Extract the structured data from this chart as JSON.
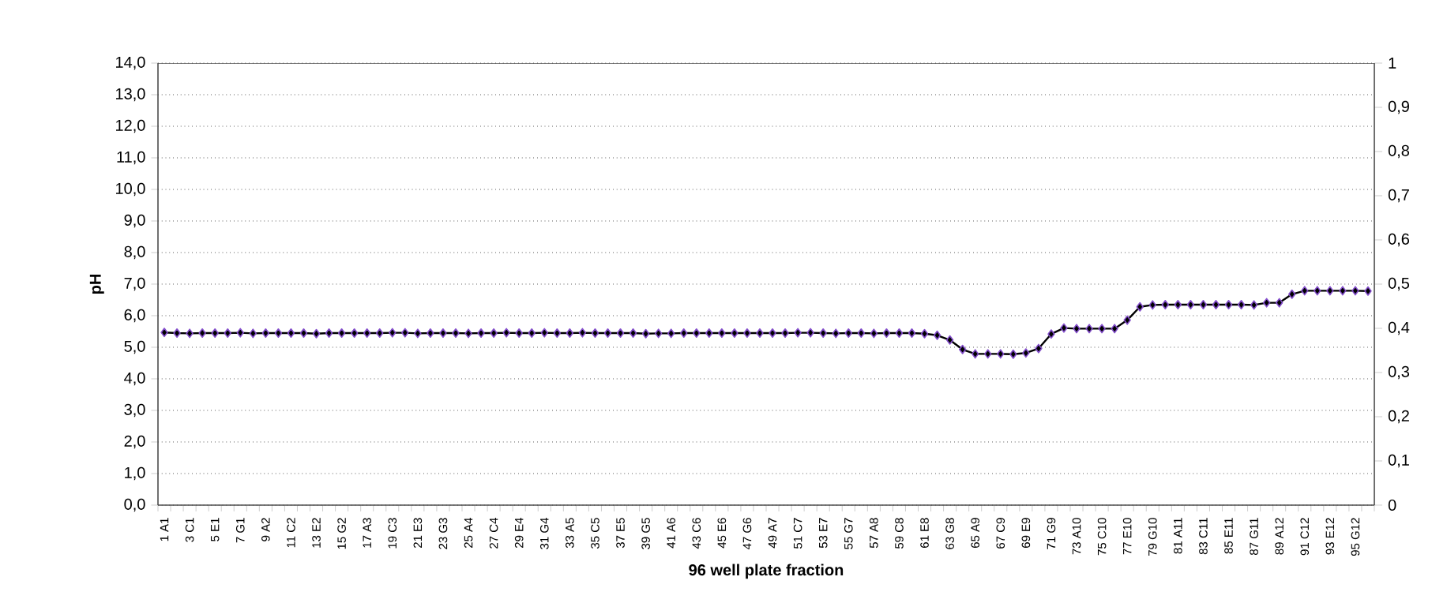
{
  "chart_data": {
    "type": "line",
    "xlabel": "96 well plate fraction",
    "ylabel": "pH",
    "categories": [
      "1 A1",
      null,
      "3 C1",
      null,
      "5 E1",
      null,
      "7 G1",
      null,
      "9 A2",
      null,
      "11 C2",
      null,
      "13 E2",
      null,
      "15 G2",
      null,
      "17 A3",
      null,
      "19 C3",
      null,
      "21 E3",
      null,
      "23 G3",
      null,
      "25 A4",
      null,
      "27 C4",
      null,
      "29 E4",
      null,
      "31 G4",
      null,
      "33 A5",
      null,
      "35 C5",
      null,
      "37 E5",
      null,
      "39 G5",
      null,
      "41 A6",
      null,
      "43 C6",
      null,
      "45 E6",
      null,
      "47 G6",
      null,
      "49 A7",
      null,
      "51 C7",
      null,
      "53 E7",
      null,
      "55 G7",
      null,
      "57 A8",
      null,
      "59 C8",
      null,
      "61 E8",
      null,
      "63 G8",
      null,
      "65 A9",
      null,
      "67 C9",
      null,
      "69 E9",
      null,
      "71 G9",
      null,
      "73 A10",
      null,
      "75 C10",
      null,
      "77 E10",
      null,
      "79 G10",
      null,
      "81 A11",
      null,
      "83 C11",
      null,
      "85 E11",
      null,
      "87 G11",
      null,
      "89 A12",
      null,
      "91 C12",
      null,
      "93 E12",
      null,
      "95 G12",
      null
    ],
    "series": [
      {
        "color": "#000000",
        "values": [
          5.47,
          5.45,
          5.44,
          5.45,
          5.45,
          5.45,
          5.46,
          5.44,
          5.45,
          5.45,
          5.45,
          5.45,
          5.43,
          5.45,
          5.45,
          5.45,
          5.45,
          5.45,
          5.46,
          5.46,
          5.44,
          5.45,
          5.45,
          5.45,
          5.44,
          5.45,
          5.45,
          5.46,
          5.45,
          5.45,
          5.46,
          5.45,
          5.45,
          5.46,
          5.45,
          5.45,
          5.45,
          5.45,
          5.43,
          5.44,
          5.44,
          5.45,
          5.45,
          5.45,
          5.45,
          5.45,
          5.45,
          5.45,
          5.45,
          5.45,
          5.46,
          5.46,
          5.45,
          5.44,
          5.45,
          5.45,
          5.44,
          5.45,
          5.45,
          5.45,
          5.43,
          5.38,
          5.23,
          4.93,
          4.79,
          4.79,
          4.79,
          4.78,
          4.82,
          4.96,
          5.42,
          5.61,
          5.59,
          5.59,
          5.59,
          5.59,
          5.86,
          6.28,
          6.34,
          6.35,
          6.35,
          6.35,
          6.35,
          6.35,
          6.35,
          6.35,
          6.34,
          6.41,
          6.41,
          6.68,
          6.79,
          6.79,
          6.79,
          6.79,
          6.79,
          6.78
        ]
      }
    ],
    "ylim": [
      0,
      14
    ],
    "yticks": [
      {
        "value": 0,
        "label": "0,0"
      },
      {
        "value": 1,
        "label": "1,0"
      },
      {
        "value": 2,
        "label": "2,0"
      },
      {
        "value": 3,
        "label": "3,0"
      },
      {
        "value": 4,
        "label": "4,0"
      },
      {
        "value": 5,
        "label": "5,0"
      },
      {
        "value": 6,
        "label": "6,0"
      },
      {
        "value": 7,
        "label": "7,0"
      },
      {
        "value": 8,
        "label": "8,0"
      },
      {
        "value": 9,
        "label": "9,0"
      },
      {
        "value": 10,
        "label": "10,0"
      },
      {
        "value": 11,
        "label": "11,0"
      },
      {
        "value": 12,
        "label": "12,0"
      },
      {
        "value": 13,
        "label": "13,0"
      },
      {
        "value": 14,
        "label": "14,0"
      }
    ],
    "y2lim": [
      0,
      1
    ],
    "y2ticks": [
      0,
      {
        "value": 0.1,
        "label": "0,1"
      },
      {
        "value": 0.2,
        "label": "0,2"
      },
      {
        "value": 0.3,
        "label": "0,3"
      },
      {
        "value": 0.4,
        "label": "0,4"
      },
      {
        "value": 0.5,
        "label": "0,5"
      },
      {
        "value": 0.6,
        "label": "0,6"
      },
      {
        "value": 0.7,
        "label": "0,7"
      },
      {
        "value": 0.8,
        "label": "0,8"
      },
      {
        "value": 0.9,
        "label": "0,9"
      },
      1
    ],
    "grid": "y",
    "marker": "diamond",
    "line_style": "solid",
    "legend": false
  }
}
